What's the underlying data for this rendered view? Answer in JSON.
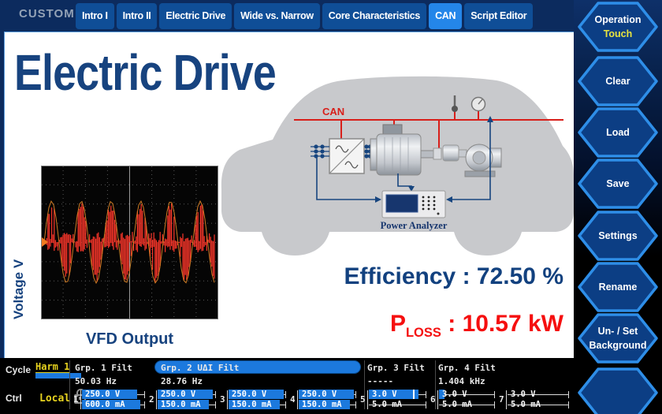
{
  "header": {
    "mode_label": "CUSTOM",
    "tabs": [
      {
        "label": "Intro I",
        "selected": false
      },
      {
        "label": "Intro II",
        "selected": false
      },
      {
        "label": "Electric Drive",
        "selected": false
      },
      {
        "label": "Wide vs. Narrow",
        "selected": false
      },
      {
        "label": "Core Characteristics",
        "selected": false
      },
      {
        "label": "CAN",
        "selected": true
      },
      {
        "label": "Script Editor",
        "selected": false
      }
    ]
  },
  "sidebar": {
    "accent": "#2e8ee8",
    "fill": "#0c3e84",
    "buttons": [
      {
        "line1": "Operation",
        "line2": "Touch",
        "line2_yellow": true
      },
      {
        "line1": "Clear",
        "line2": "",
        "line2_yellow": false
      },
      {
        "line1": "Load",
        "line2": "",
        "line2_yellow": false
      },
      {
        "line1": "Save",
        "line2": "",
        "line2_yellow": false
      },
      {
        "line1": "Settings",
        "line2": "",
        "line2_yellow": false
      },
      {
        "line1": "Rename",
        "line2": "",
        "line2_yellow": false
      },
      {
        "line1": "Un- / Set",
        "line2": "Background",
        "line2_yellow": false
      },
      {
        "line1": "",
        "line2": "",
        "line2_yellow": false
      }
    ],
    "touch_color": "#e9e43f"
  },
  "main": {
    "title": "Electric Drive",
    "scope": {
      "ylabel": "Voltage V",
      "caption": "VFD Output",
      "trace_color": "#ee3328",
      "envelope_color": "#cf7c24",
      "cycles": 5.75
    },
    "diagram": {
      "bus_label": "CAN",
      "device_label": "Power Analyzer",
      "bus_color": "#d81f1a",
      "wire_color": "#17457f"
    },
    "metrics": {
      "sep": " : ",
      "efficiency_label": "Efficiency",
      "efficiency_value": "72.50 %",
      "efficiency_color": "#12417f",
      "ploss_label": "P",
      "ploss_sub": "LOSS",
      "ploss_value": "10.57 kW",
      "ploss_color": "#f50f0f"
    }
  },
  "statusbar": {
    "cycle_label": "Cycle",
    "cycle_value": "Harm 1",
    "ctrl_label": "Ctrl",
    "ctrl_value": "Local",
    "lock_icon": "padlock",
    "accent": "#1c79dd",
    "value_color": "#e6d21f",
    "groups": [
      {
        "name": "Grp. 1 Filt",
        "value": "50.03 Hz",
        "selected": false
      },
      {
        "name": "Grp. 2 UΔI Filt",
        "value": "28.76 Hz",
        "selected": true
      },
      {
        "name": "Grp. 3 Filt",
        "value": "-----",
        "selected": false
      },
      {
        "name": "Grp. 4 Filt",
        "value": "1.404 kHz",
        "selected": false
      }
    ],
    "channels": [
      {
        "num": "1",
        "voltage": "250.0 V",
        "current": "600.0 mA",
        "v_fill": 0.95,
        "c_fill": 1.0
      },
      {
        "num": "2",
        "voltage": "250.0 V",
        "current": "150.0 mA",
        "v_fill": 0.95,
        "c_fill": 0.88
      },
      {
        "num": "3",
        "voltage": "250.0 V",
        "current": "150.0 mA",
        "v_fill": 0.95,
        "c_fill": 0.88
      },
      {
        "num": "4",
        "voltage": "250.0 V",
        "current": "150.0 mA",
        "v_fill": 0.95,
        "c_fill": 0.88
      },
      {
        "num": "5",
        "voltage": "3.0 V",
        "current": "5.0 mA",
        "v_fill": 0.85,
        "v_marker": 0.76,
        "c_fill": 0
      },
      {
        "num": "6",
        "voltage": "3.0 V",
        "current": "5.0 mA",
        "v_fill": 0.1,
        "c_fill": 0
      },
      {
        "num": "7",
        "voltage": "3.0 V",
        "current": "5.0 mA",
        "v_fill": 0,
        "c_fill": 0
      }
    ]
  }
}
